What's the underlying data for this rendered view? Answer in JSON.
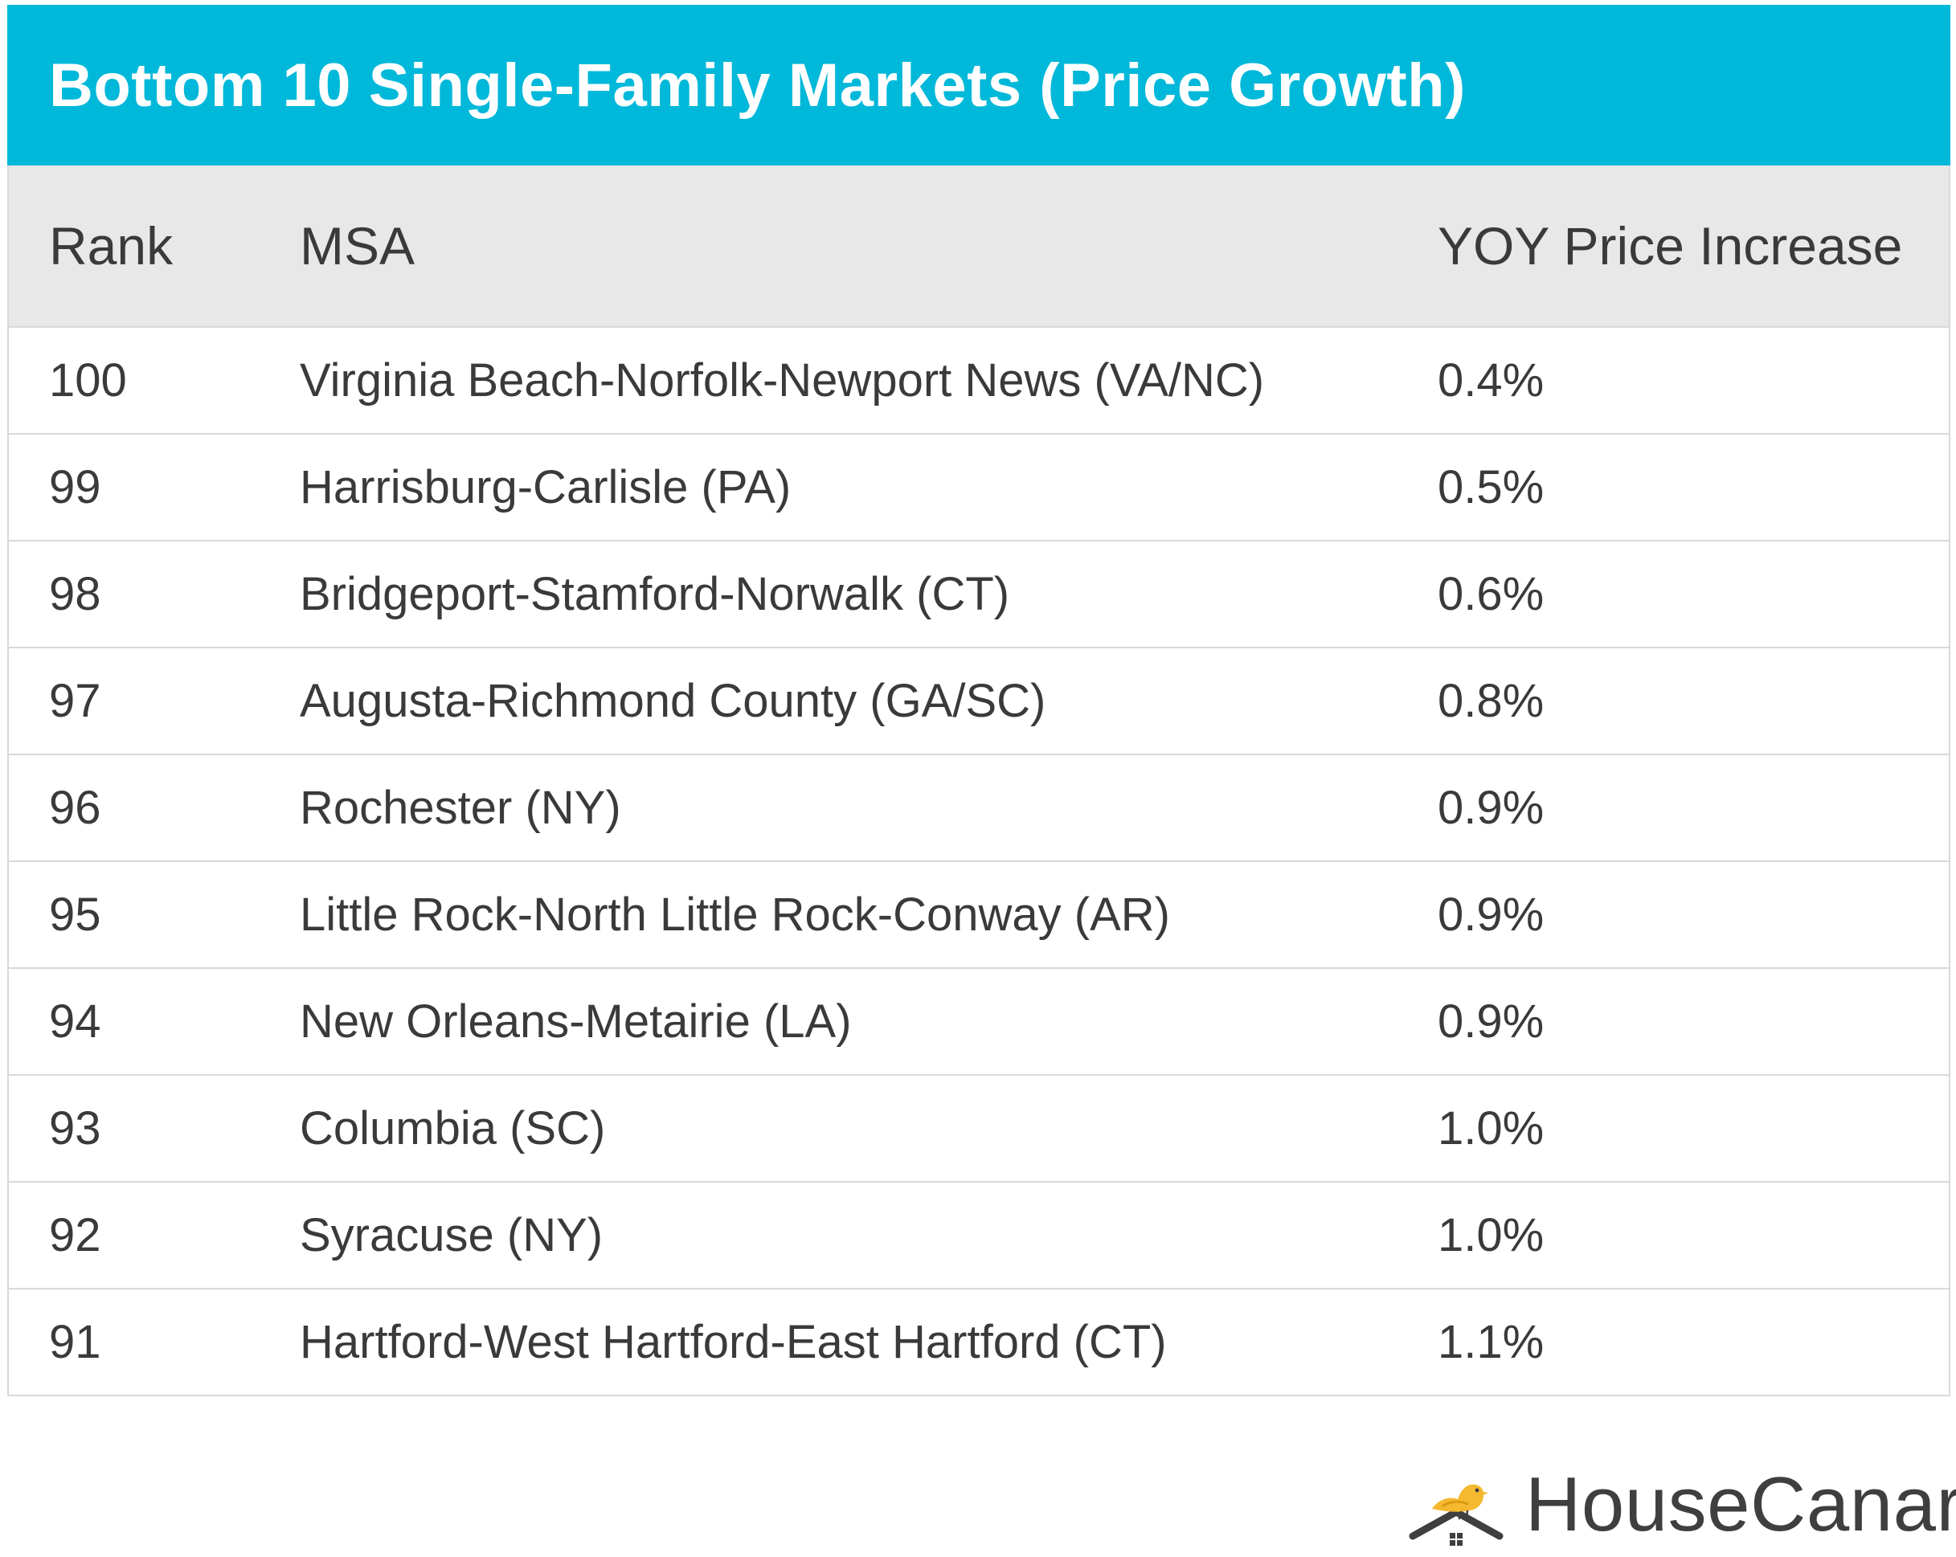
{
  "chart_data": {
    "type": "table",
    "title": "Bottom 10 Single-Family Markets (Price Growth)",
    "columns": [
      "Rank",
      "MSA",
      "YOY Price Increase"
    ],
    "rows": [
      {
        "rank": "100",
        "msa": "Virginia Beach-Norfolk-Newport News (VA/NC)",
        "yoy": "0.4%",
        "yoy_value": 0.4
      },
      {
        "rank": "99",
        "msa": "Harrisburg-Carlisle (PA)",
        "yoy": "0.5%",
        "yoy_value": 0.5
      },
      {
        "rank": "98",
        "msa": "Bridgeport-Stamford-Norwalk (CT)",
        "yoy": "0.6%",
        "yoy_value": 0.6
      },
      {
        "rank": "97",
        "msa": "Augusta-Richmond County (GA/SC)",
        "yoy": "0.8%",
        "yoy_value": 0.8
      },
      {
        "rank": "96",
        "msa": "Rochester (NY)",
        "yoy": "0.9%",
        "yoy_value": 0.9
      },
      {
        "rank": "95",
        "msa": "Little Rock-North Little Rock-Conway (AR)",
        "yoy": "0.9%",
        "yoy_value": 0.9
      },
      {
        "rank": "94",
        "msa": "New Orleans-Metairie (LA)",
        "yoy": "0.9%",
        "yoy_value": 0.9
      },
      {
        "rank": "93",
        "msa": "Columbia (SC)",
        "yoy": "1.0%",
        "yoy_value": 1.0
      },
      {
        "rank": "92",
        "msa": "Syracuse (NY)",
        "yoy": "1.0%",
        "yoy_value": 1.0
      },
      {
        "rank": "91",
        "msa": "Hartford-West Hartford-East Hartford (CT)",
        "yoy": "1.1%",
        "yoy_value": 1.1
      }
    ]
  },
  "brand": {
    "name": "HouseCanary",
    "logo_icon": "canary-on-house-icon"
  },
  "colors": {
    "title_bar": "#00b8d9",
    "header_bg": "#e8e8e8",
    "rule": "#d9d9d9",
    "text": "#3a3a3a",
    "bird": "#f5b82e",
    "house": "#3f3f3f"
  }
}
